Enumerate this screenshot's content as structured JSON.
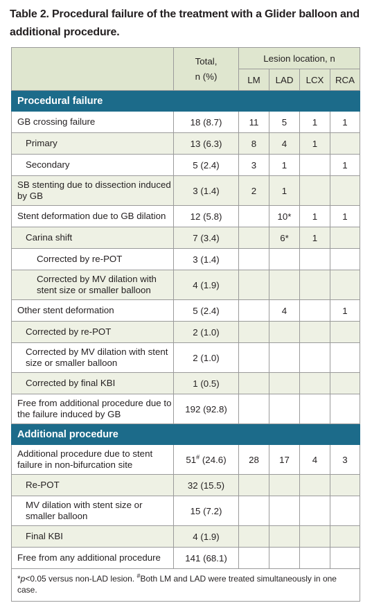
{
  "title": "Table 2. Procedural failure of the treatment with a Glider balloon and additional procedure.",
  "header": {
    "total_line1": "Total,",
    "total_line2": "n (%)",
    "lesion_location": "Lesion location, n",
    "cols": [
      "LM",
      "LAD",
      "LCX",
      "RCA"
    ]
  },
  "sections": {
    "procedural_failure": "Procedural failure",
    "additional_procedure": "Additional procedure"
  },
  "rows": [
    {
      "label": "GB crossing failure",
      "total": "18 (8.7)",
      "lm": "11",
      "lad": "5",
      "lcx": "1",
      "rca": "1"
    },
    {
      "label": "Primary",
      "total": "13 (6.3)",
      "lm": "8",
      "lad": "4",
      "lcx": "1",
      "rca": ""
    },
    {
      "label": "Secondary",
      "total": "5 (2.4)",
      "lm": "3",
      "lad": "1",
      "lcx": "",
      "rca": "1"
    },
    {
      "label": "SB stenting due to dissection induced by GB",
      "total": "3 (1.4)",
      "lm": "2",
      "lad": "1",
      "lcx": "",
      "rca": ""
    },
    {
      "label": "Stent deformation due to GB dilation",
      "total": "12 (5.8)",
      "lm": "",
      "lad": "10*",
      "lcx": "1",
      "rca": "1"
    },
    {
      "label": "Carina shift",
      "total": "7 (3.4)",
      "lm": "",
      "lad": "6*",
      "lcx": "1",
      "rca": ""
    },
    {
      "label": "Corrected by re-POT",
      "total": "3 (1.4)",
      "lm": "",
      "lad": "",
      "lcx": "",
      "rca": ""
    },
    {
      "label": "Corrected by MV dilation with stent size or smaller balloon",
      "total": "4 (1.9)",
      "lm": "",
      "lad": "",
      "lcx": "",
      "rca": ""
    },
    {
      "label": "Other stent deformation",
      "total": "5 (2.4)",
      "lm": "",
      "lad": "4",
      "lcx": "",
      "rca": "1"
    },
    {
      "label": "Corrected by re-POT",
      "total": "2 (1.0)",
      "lm": "",
      "lad": "",
      "lcx": "",
      "rca": ""
    },
    {
      "label": "Corrected by MV dilation with stent size or smaller balloon",
      "total": "2 (1.0)",
      "lm": "",
      "lad": "",
      "lcx": "",
      "rca": ""
    },
    {
      "label": "Corrected by final KBI",
      "total": "1 (0.5)",
      "lm": "",
      "lad": "",
      "lcx": "",
      "rca": ""
    },
    {
      "label": "Free from additional procedure due to the failure induced by GB",
      "total": "192 (92.8)",
      "lm": "",
      "lad": "",
      "lcx": "",
      "rca": ""
    },
    {
      "label": "Additional procedure due to stent failure in non-bifurcation site",
      "total_num": "51",
      "total_mark": "#",
      "total_rest": " (24.6)",
      "lm": "28",
      "lad": "17",
      "lcx": "4",
      "rca": "3"
    },
    {
      "label": "Re-POT",
      "total": "32 (15.5)",
      "lm": "",
      "lad": "",
      "lcx": "",
      "rca": ""
    },
    {
      "label": "MV dilation with stent size or smaller balloon",
      "total": "15 (7.2)",
      "lm": "",
      "lad": "",
      "lcx": "",
      "rca": ""
    },
    {
      "label": "Final KBI",
      "total": "4 (1.9)",
      "lm": "",
      "lad": "",
      "lcx": "",
      "rca": ""
    },
    {
      "label": "Free from any additional procedure",
      "total": "141 (68.1)",
      "lm": "",
      "lad": "",
      "lcx": "",
      "rca": ""
    }
  ],
  "footnote": {
    "star": "*",
    "p": "p",
    "p_rest": "<0.05 versus non-LAD lesion. ",
    "hash": "#",
    "hash_rest": "Both LM and LAD were treated simultaneously in one case."
  }
}
